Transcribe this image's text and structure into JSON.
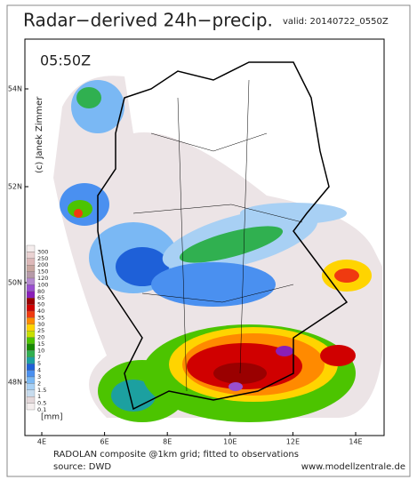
{
  "header": {
    "title": "Radar−derived 24h−precip.",
    "valid": "valid: 20140722_0550Z"
  },
  "map": {
    "time": "05:50Z",
    "copyright": "(c) Janek Zimmer",
    "lat_labels": [
      "54N",
      "52N",
      "50N",
      "48N"
    ],
    "lon_labels": [
      "4E",
      "6E",
      "8E",
      "10E",
      "12E",
      "14E"
    ]
  },
  "legend": {
    "unit": "[mm]",
    "items": [
      {
        "label": "300",
        "color": "#f4ecec"
      },
      {
        "label": "250",
        "color": "#ead2d2"
      },
      {
        "label": "200",
        "color": "#ddb8b8"
      },
      {
        "label": "150",
        "color": "#c9a7a0"
      },
      {
        "label": "120",
        "color": "#b79aa8"
      },
      {
        "label": "100",
        "color": "#b58ad0"
      },
      {
        "label": "80",
        "color": "#9a4fd0"
      },
      {
        "label": "65",
        "color": "#8a1fb8"
      },
      {
        "label": "50",
        "color": "#9a0000"
      },
      {
        "label": "40",
        "color": "#d00000"
      },
      {
        "label": "35",
        "color": "#f03a10"
      },
      {
        "label": "30",
        "color": "#ff8a00"
      },
      {
        "label": "25",
        "color": "#ffd400"
      },
      {
        "label": "20",
        "color": "#c8e000"
      },
      {
        "label": "15",
        "color": "#4cc400"
      },
      {
        "label": "10",
        "color": "#168a00"
      },
      {
        "label": "7",
        "color": "#30b050"
      },
      {
        "label": "5",
        "color": "#1ca0a0"
      },
      {
        "label": "4",
        "color": "#1e60d8"
      },
      {
        "label": "3",
        "color": "#4a90f0"
      },
      {
        "label": "2",
        "color": "#7ab8f4"
      },
      {
        "label": "1.5",
        "color": "#a8d0f4"
      },
      {
        "label": "1",
        "color": "#c8dcee"
      },
      {
        "label": "0.5",
        "color": "#e4d8da"
      },
      {
        "label": "0.1",
        "color": "#f4eeee"
      }
    ]
  },
  "footer": {
    "line1": "RADOLAN composite @1km grid; fitted to observations",
    "source": "source: DWD",
    "website": "www.modellzentrale.de"
  }
}
